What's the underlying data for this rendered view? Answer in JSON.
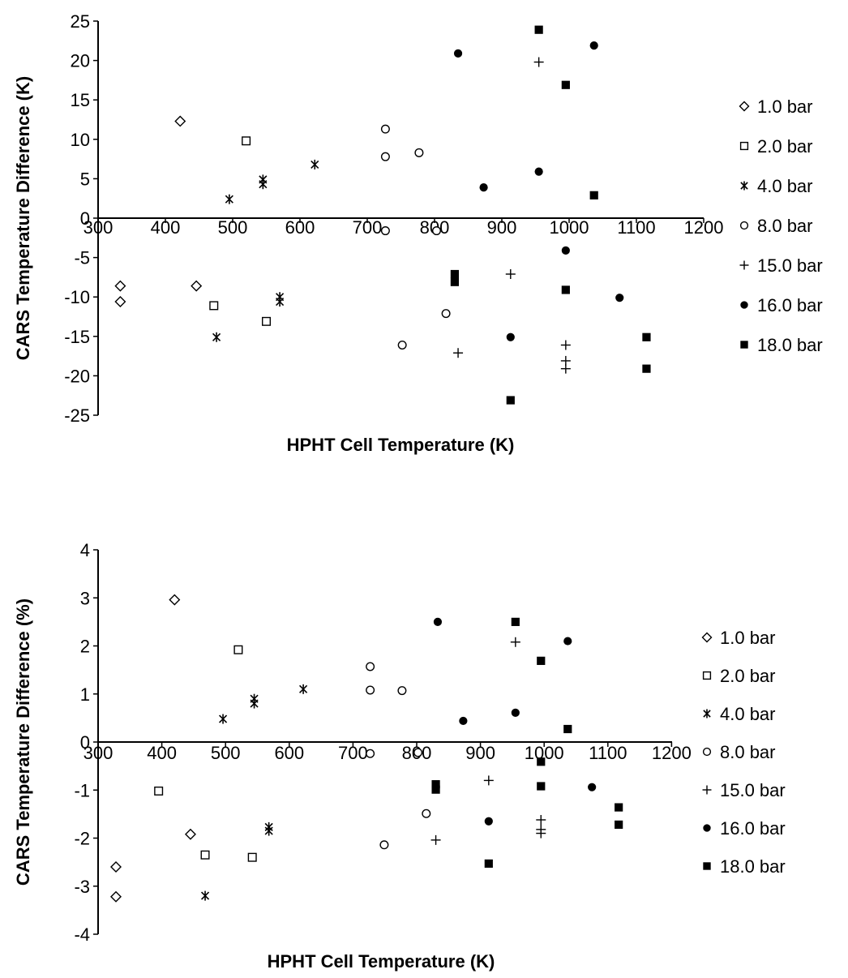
{
  "charts": [
    {
      "xlabel": "HPHT Cell Temperature (K)",
      "ylabel": "CARS Temperature Difference (K)",
      "xticks": [
        "300",
        "400",
        "500",
        "600",
        "700",
        "800",
        "900",
        "1000",
        "1100",
        "1200"
      ],
      "yticks": [
        "25",
        "20",
        "15",
        "10",
        "5",
        "0",
        "-5",
        "-10",
        "-15",
        "-20",
        "-25"
      ],
      "legend": [
        "1.0 bar",
        "2.0 bar",
        "4.0 bar",
        "8.0 bar",
        "15.0 bar",
        "16.0 bar",
        "18.0 bar"
      ]
    },
    {
      "xlabel": "HPHT Cell Temperature (K)",
      "ylabel": "CARS Temperature Difference (%)",
      "xticks": [
        "300",
        "400",
        "500",
        "600",
        "700",
        "800",
        "900",
        "1000",
        "1100",
        "1200"
      ],
      "yticks": [
        "4",
        "3",
        "2",
        "1",
        "0",
        "-1",
        "-2",
        "-3",
        "-4"
      ],
      "legend": [
        "1.0 bar",
        "2.0 bar",
        "4.0 bar",
        "8.0 bar",
        "15.0 bar",
        "16.0 bar",
        "18.0 bar"
      ]
    }
  ],
  "chart_data": [
    {
      "type": "scatter",
      "xlabel": "HPHT Cell Temperature (K)",
      "ylabel": "CARS Temperature Difference (K)",
      "xlim": [
        300,
        1200
      ],
      "ylim": [
        -25,
        25
      ],
      "grid": false,
      "legend_position": "right",
      "series": [
        {
          "name": "1.0 bar",
          "marker": "diamond-open",
          "x": [
            422,
            333,
            333,
            446
          ],
          "y": [
            12.3,
            -8.6,
            -10.6,
            -8.6
          ]
        },
        {
          "name": "2.0 bar",
          "marker": "square-open",
          "x": [
            520,
            472,
            550
          ],
          "y": [
            9.8,
            -11.1,
            -13.1
          ]
        },
        {
          "name": "4.0 bar",
          "marker": "asterisk",
          "x": [
            495,
            545,
            545,
            622,
            570,
            570,
            476
          ],
          "y": [
            2.4,
            4.9,
            4.3,
            6.8,
            -10.0,
            -10.6,
            -15.1
          ]
        },
        {
          "name": "8.0 bar",
          "marker": "circle-open",
          "x": [
            727,
            727,
            777,
            727,
            803,
            817,
            752
          ],
          "y": [
            11.3,
            7.8,
            8.3,
            -1.6,
            -1.6,
            -12.1,
            -16.1
          ]
        },
        {
          "name": "15.0 bar",
          "marker": "plus",
          "x": [
            955,
            913,
            835,
            995,
            995,
            995
          ],
          "y": [
            19.8,
            -7.1,
            -17.1,
            -16.1,
            -18.1,
            -19.1
          ]
        },
        {
          "name": "16.0 bar",
          "marker": "circle-filled",
          "x": [
            835,
            1037,
            955,
            873,
            913,
            995,
            1075
          ],
          "y": [
            20.9,
            21.9,
            5.9,
            3.9,
            -15.1,
            -4.1,
            -10.1
          ]
        },
        {
          "name": "18.0 bar",
          "marker": "square-filled",
          "x": [
            955,
            995,
            1037,
            830,
            830,
            995,
            1115,
            1115,
            913
          ],
          "y": [
            23.9,
            16.9,
            2.9,
            -7.1,
            -8.1,
            -9.1,
            -15.1,
            -19.1,
            -23.1
          ]
        }
      ]
    },
    {
      "type": "scatter",
      "xlabel": "HPHT Cell Temperature (K)",
      "ylabel": "CARS Temperature Difference (%)",
      "xlim": [
        300,
        1200
      ],
      "ylim": [
        -4,
        4
      ],
      "grid": false,
      "legend_position": "right",
      "series": [
        {
          "name": "1.0 bar",
          "marker": "diamond-open",
          "x": [
            420,
            445,
            328,
            328
          ],
          "y": [
            2.96,
            -1.92,
            -2.6,
            -3.22
          ]
        },
        {
          "name": "2.0 bar",
          "marker": "square-open",
          "x": [
            520,
            395,
            468,
            542
          ],
          "y": [
            1.92,
            -1.02,
            -2.35,
            -2.4
          ]
        },
        {
          "name": "4.0 bar",
          "marker": "asterisk",
          "x": [
            496,
            545,
            545,
            622,
            568,
            568,
            468
          ],
          "y": [
            0.48,
            0.9,
            0.8,
            1.1,
            -1.77,
            -1.85,
            -3.2
          ]
        },
        {
          "name": "8.0 bar",
          "marker": "circle-open",
          "x": [
            727,
            727,
            777,
            727,
            802,
            815,
            749
          ],
          "y": [
            1.57,
            1.08,
            1.07,
            -0.24,
            -0.22,
            -1.49,
            -2.14
          ]
        },
        {
          "name": "15.0 bar",
          "marker": "plus",
          "x": [
            955,
            913,
            830,
            995,
            995,
            995
          ],
          "y": [
            2.08,
            -0.8,
            -2.04,
            -1.62,
            -1.82,
            -1.9
          ]
        },
        {
          "name": "16.0 bar",
          "marker": "circle-filled",
          "x": [
            833,
            1037,
            955,
            873,
            913,
            1075
          ],
          "y": [
            2.5,
            2.1,
            0.61,
            0.44,
            -1.65,
            -0.94
          ]
        },
        {
          "name": "18.0 bar",
          "marker": "square-filled",
          "x": [
            955,
            995,
            1037,
            830,
            830,
            995,
            995,
            1117,
            1117,
            913
          ],
          "y": [
            2.5,
            1.69,
            0.27,
            -0.88,
            -0.99,
            -0.41,
            -0.92,
            -1.36,
            -1.72,
            -2.53
          ]
        }
      ]
    }
  ]
}
